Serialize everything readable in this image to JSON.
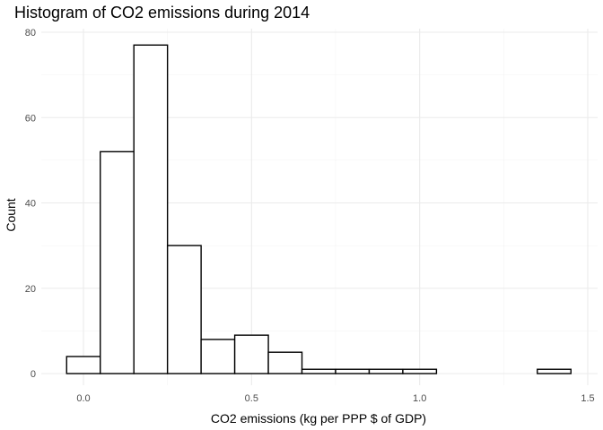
{
  "chart_data": {
    "type": "histogram",
    "title": "Histogram of CO2 emissions during 2014",
    "xlabel": "CO2 emissions (kg per PPP $ of GDP)",
    "ylabel": "Count",
    "xlim": [
      -0.05,
      1.45
    ],
    "ylim": [
      0,
      80
    ],
    "x_ticks": [
      0.0,
      0.5,
      1.0,
      1.5
    ],
    "x_tick_labels": [
      "0.0",
      "0.5",
      "1.0",
      "1.5"
    ],
    "y_ticks": [
      0,
      20,
      40,
      60,
      80
    ],
    "y_tick_labels": [
      "0",
      "20",
      "40",
      "60",
      "80"
    ],
    "bin_width": 0.1,
    "bins": [
      {
        "start": -0.05,
        "end": 0.05,
        "count": 4
      },
      {
        "start": 0.05,
        "end": 0.15,
        "count": 52
      },
      {
        "start": 0.15,
        "end": 0.25,
        "count": 77
      },
      {
        "start": 0.25,
        "end": 0.35,
        "count": 30
      },
      {
        "start": 0.35,
        "end": 0.45,
        "count": 8
      },
      {
        "start": 0.45,
        "end": 0.55,
        "count": 9
      },
      {
        "start": 0.55,
        "end": 0.65,
        "count": 5
      },
      {
        "start": 0.65,
        "end": 0.75,
        "count": 1
      },
      {
        "start": 0.75,
        "end": 0.85,
        "count": 1
      },
      {
        "start": 0.85,
        "end": 0.95,
        "count": 1
      },
      {
        "start": 0.95,
        "end": 1.05,
        "count": 1
      },
      {
        "start": 1.05,
        "end": 1.15,
        "count": 0
      },
      {
        "start": 1.15,
        "end": 1.25,
        "count": 0
      },
      {
        "start": 1.25,
        "end": 1.35,
        "count": 0
      },
      {
        "start": 1.35,
        "end": 1.45,
        "count": 1
      }
    ],
    "grid": true,
    "bar_fill": "#ffffff",
    "bar_outline": "#000000",
    "grid_color": "#ebebeb"
  }
}
